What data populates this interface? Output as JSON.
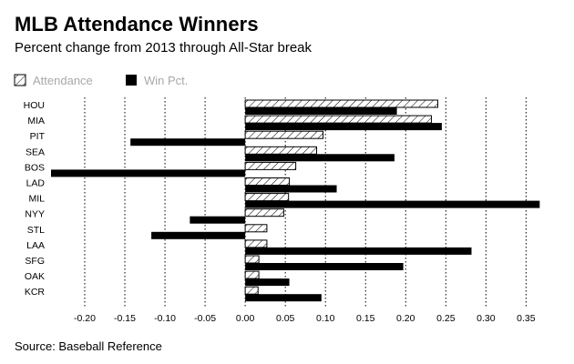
{
  "title": "MLB Attendance Winners",
  "subtitle": "Percent change from 2013 through All-Star break",
  "source": "Source: Baseball Reference",
  "colors": {
    "winpct_fill": "#000000",
    "attendance_fill": "#ffffff",
    "legend_text": "#a8a8a8",
    "grid": "#000000"
  },
  "chart_data": {
    "type": "bar",
    "orientation": "horizontal",
    "title": "MLB Attendance Winners",
    "subtitle": "Percent change from 2013 through All-Star break",
    "categories": [
      "HOU",
      "MIA",
      "PIT",
      "SEA",
      "BOS",
      "LAD",
      "MIL",
      "NYY",
      "STL",
      "LAA",
      "SFG",
      "OAK",
      "KCR"
    ],
    "series": [
      {
        "name": "Attendance",
        "pattern": "hatched",
        "values": [
          0.24,
          0.232,
          0.097,
          0.089,
          0.063,
          0.055,
          0.054,
          0.048,
          0.027,
          0.027,
          0.017,
          0.017,
          0.016
        ]
      },
      {
        "name": "Win Pct.",
        "pattern": "solid",
        "values": [
          0.189,
          0.245,
          -0.143,
          0.186,
          -0.242,
          0.114,
          0.367,
          -0.069,
          -0.117,
          0.282,
          0.197,
          0.055,
          0.095
        ]
      }
    ],
    "xlim": [
      -0.242,
      0.37
    ],
    "xticks": [
      -0.2,
      -0.15,
      -0.1,
      -0.05,
      0.0,
      0.05,
      0.1,
      0.15,
      0.2,
      0.25,
      0.3,
      0.35
    ],
    "xtick_labels": [
      "-0.20",
      "-0.15",
      "-0.10",
      "-0.05",
      "0.00",
      "0.05",
      "0.10",
      "0.15",
      "0.20",
      "0.25",
      "0.30",
      "0.35"
    ],
    "grid": "vertical-dotted",
    "legend": {
      "placement": "top-left",
      "entries": [
        "Attendance",
        "Win Pct."
      ]
    }
  }
}
